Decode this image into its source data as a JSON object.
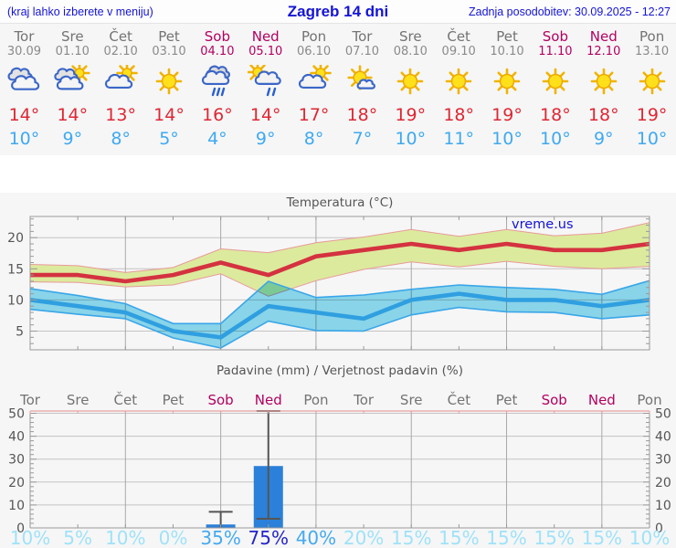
{
  "header": {
    "left_note": "(kraj lahko izberete v meniju)",
    "title": "Zagreb 14 dni",
    "updated": "Zadnja posodobitev: 30.09.2025 - 12:27"
  },
  "colors": {
    "header_blue": "#1414d6",
    "weekend": "#b20060",
    "day_gray": "#737373",
    "date_gray": "#8a8a8a",
    "tmax_red": "#de2733",
    "tmin_blue": "#3fa9f0",
    "line_red": "#d43240",
    "line_blue": "#2f9fe0",
    "band_yellow": "#dcea9d",
    "band_yellow_edge": "#e89a9a",
    "band_blue": "#8edcf2",
    "band_blue_edge": "#3aa6e8",
    "bar_blue": "#2b80d9",
    "whisker": "#555555",
    "grid": "#c4c4c4",
    "grid_v": "#a8a8a8",
    "frame": "#999999",
    "axis_text": "#555555",
    "title_gray": "#555555",
    "pink_line": "#e8a0a0",
    "pop_low": "#9fe2f8",
    "pop_mid": "#44aaf0",
    "pop_high": "#2424cc"
  },
  "forecast": {
    "days": [
      {
        "name": "Tor",
        "date": "30.09",
        "icon": "cloudy",
        "tmax": 14,
        "tmin": 10,
        "weekend": false
      },
      {
        "name": "Sre",
        "date": "01.10",
        "icon": "partly-cloudy-2",
        "tmax": 14,
        "tmin": 9,
        "weekend": false
      },
      {
        "name": "Čet",
        "date": "02.10",
        "icon": "partly-cloudy",
        "tmax": 13,
        "tmin": 8,
        "weekend": false
      },
      {
        "name": "Pet",
        "date": "03.10",
        "icon": "sunny",
        "tmax": 14,
        "tmin": 5,
        "weekend": false
      },
      {
        "name": "Sob",
        "date": "04.10",
        "icon": "rain",
        "tmax": 16,
        "tmin": 4,
        "weekend": true
      },
      {
        "name": "Ned",
        "date": "05.10",
        "icon": "sun-rain",
        "tmax": 14,
        "tmin": 9,
        "weekend": true
      },
      {
        "name": "Pon",
        "date": "06.10",
        "icon": "partly-cloudy",
        "tmax": 17,
        "tmin": 8,
        "weekend": false
      },
      {
        "name": "Tor",
        "date": "07.10",
        "icon": "mostly-sunny",
        "tmax": 18,
        "tmin": 7,
        "weekend": false
      },
      {
        "name": "Sre",
        "date": "08.10",
        "icon": "sunny",
        "tmax": 19,
        "tmin": 10,
        "weekend": false
      },
      {
        "name": "Čet",
        "date": "09.10",
        "icon": "sunny",
        "tmax": 18,
        "tmin": 11,
        "weekend": false
      },
      {
        "name": "Pet",
        "date": "10.10",
        "icon": "sunny",
        "tmax": 19,
        "tmin": 10,
        "weekend": false
      },
      {
        "name": "Sob",
        "date": "11.10",
        "icon": "sunny",
        "tmax": 18,
        "tmin": 10,
        "weekend": true
      },
      {
        "name": "Ned",
        "date": "12.10",
        "icon": "sunny",
        "tmax": 18,
        "tmin": 9,
        "weekend": true
      },
      {
        "name": "Pon",
        "date": "13.10",
        "icon": "sunny",
        "tmax": 19,
        "tmin": 10,
        "weekend": false
      }
    ]
  },
  "chart_data": [
    {
      "type": "line",
      "name": "temperature",
      "title": "Temperatura (°C)",
      "watermark": "vreme.us",
      "x_count": 14,
      "grid_x_indices": [
        2,
        4,
        6,
        8,
        10,
        12
      ],
      "yticks": [
        5,
        10,
        15,
        20
      ],
      "ylim": [
        2,
        23.4
      ],
      "legend_position": "none",
      "series": [
        {
          "name": "max-temp",
          "values": [
            14,
            14,
            13,
            14,
            16,
            14,
            17,
            18,
            19,
            18,
            19,
            18,
            18,
            19
          ],
          "band_hi": [
            15.7,
            15.5,
            14.4,
            15.2,
            18.2,
            17.6,
            19.2,
            20.1,
            21.3,
            20.2,
            21.3,
            20.3,
            20.7,
            22.4
          ],
          "band_lo": [
            12.9,
            12.8,
            12.1,
            12.4,
            14.2,
            10.6,
            13.1,
            14.9,
            16.1,
            15.3,
            16.2,
            15.4,
            15.0,
            15.4
          ]
        },
        {
          "name": "min-temp",
          "values": [
            10,
            9,
            8,
            5,
            4,
            9,
            8,
            7,
            10,
            11,
            10,
            10,
            9,
            10
          ],
          "band_hi": [
            11.8,
            10.7,
            9.4,
            6.2,
            6.2,
            13.0,
            10.4,
            10.8,
            11.7,
            12.4,
            12.0,
            11.7,
            10.9,
            13.1
          ],
          "band_lo": [
            8.5,
            7.7,
            7.0,
            3.9,
            2.3,
            6.6,
            5.1,
            5.0,
            7.6,
            8.8,
            8.1,
            8.0,
            7.0,
            7.6
          ]
        }
      ]
    },
    {
      "type": "bar",
      "name": "precipitation",
      "title": "Padavine (mm) / Verjetnost padavin (%)",
      "categories": [
        "Tor",
        "Sre",
        "Čet",
        "Pet",
        "Sob",
        "Ned",
        "Pon",
        "Tor",
        "Sre",
        "Čet",
        "Pet",
        "Sob",
        "Ned",
        "Pon"
      ],
      "weekend_indices": [
        4,
        5,
        11,
        12
      ],
      "values": [
        0,
        0,
        0,
        0,
        1.5,
        27,
        0,
        0,
        0,
        0,
        0,
        0,
        0,
        0
      ],
      "whisker_lo": [
        null,
        null,
        null,
        null,
        0,
        4,
        null,
        null,
        null,
        null,
        null,
        null,
        null,
        null
      ],
      "whisker_hi": [
        null,
        null,
        null,
        null,
        7,
        51,
        null,
        null,
        null,
        null,
        null,
        null,
        null,
        null
      ],
      "probabilities": [
        "10%",
        "5%",
        "10%",
        "0%",
        "35%",
        "75%",
        "40%",
        "20%",
        "15%",
        "15%",
        "15%",
        "15%",
        "15%",
        "10%"
      ],
      "yticks": [
        0,
        10,
        20,
        30,
        40,
        50
      ],
      "ylim": [
        0,
        51
      ],
      "grid_x_indices": [
        2,
        4,
        6,
        8,
        10,
        12
      ]
    }
  ]
}
